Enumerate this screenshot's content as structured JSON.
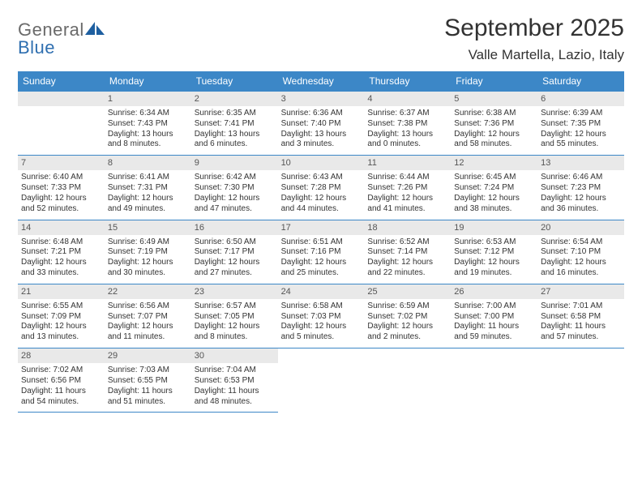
{
  "brand": {
    "part1": "General",
    "part2": "Blue"
  },
  "logo_colors": {
    "gray": "#6a6a6a",
    "blue": "#2f6fb0",
    "sail": "#1e5fa0"
  },
  "title": "September 2025",
  "location": "Valle Martella, Lazio, Italy",
  "header_bg": "#3c87c7",
  "header_fg": "#ffffff",
  "daynum_bg": "#e9e9e9",
  "daynum_fg": "#555555",
  "border_color": "#3c87c7",
  "weekdays": [
    "Sunday",
    "Monday",
    "Tuesday",
    "Wednesday",
    "Thursday",
    "Friday",
    "Saturday"
  ],
  "first_weekday_offset": 1,
  "days": [
    {
      "n": 1,
      "sunrise": "6:34 AM",
      "sunset": "7:43 PM",
      "dl": "13 hours and 8 minutes."
    },
    {
      "n": 2,
      "sunrise": "6:35 AM",
      "sunset": "7:41 PM",
      "dl": "13 hours and 6 minutes."
    },
    {
      "n": 3,
      "sunrise": "6:36 AM",
      "sunset": "7:40 PM",
      "dl": "13 hours and 3 minutes."
    },
    {
      "n": 4,
      "sunrise": "6:37 AM",
      "sunset": "7:38 PM",
      "dl": "13 hours and 0 minutes."
    },
    {
      "n": 5,
      "sunrise": "6:38 AM",
      "sunset": "7:36 PM",
      "dl": "12 hours and 58 minutes."
    },
    {
      "n": 6,
      "sunrise": "6:39 AM",
      "sunset": "7:35 PM",
      "dl": "12 hours and 55 minutes."
    },
    {
      "n": 7,
      "sunrise": "6:40 AM",
      "sunset": "7:33 PM",
      "dl": "12 hours and 52 minutes."
    },
    {
      "n": 8,
      "sunrise": "6:41 AM",
      "sunset": "7:31 PM",
      "dl": "12 hours and 49 minutes."
    },
    {
      "n": 9,
      "sunrise": "6:42 AM",
      "sunset": "7:30 PM",
      "dl": "12 hours and 47 minutes."
    },
    {
      "n": 10,
      "sunrise": "6:43 AM",
      "sunset": "7:28 PM",
      "dl": "12 hours and 44 minutes."
    },
    {
      "n": 11,
      "sunrise": "6:44 AM",
      "sunset": "7:26 PM",
      "dl": "12 hours and 41 minutes."
    },
    {
      "n": 12,
      "sunrise": "6:45 AM",
      "sunset": "7:24 PM",
      "dl": "12 hours and 38 minutes."
    },
    {
      "n": 13,
      "sunrise": "6:46 AM",
      "sunset": "7:23 PM",
      "dl": "12 hours and 36 minutes."
    },
    {
      "n": 14,
      "sunrise": "6:48 AM",
      "sunset": "7:21 PM",
      "dl": "12 hours and 33 minutes."
    },
    {
      "n": 15,
      "sunrise": "6:49 AM",
      "sunset": "7:19 PM",
      "dl": "12 hours and 30 minutes."
    },
    {
      "n": 16,
      "sunrise": "6:50 AM",
      "sunset": "7:17 PM",
      "dl": "12 hours and 27 minutes."
    },
    {
      "n": 17,
      "sunrise": "6:51 AM",
      "sunset": "7:16 PM",
      "dl": "12 hours and 25 minutes."
    },
    {
      "n": 18,
      "sunrise": "6:52 AM",
      "sunset": "7:14 PM",
      "dl": "12 hours and 22 minutes."
    },
    {
      "n": 19,
      "sunrise": "6:53 AM",
      "sunset": "7:12 PM",
      "dl": "12 hours and 19 minutes."
    },
    {
      "n": 20,
      "sunrise": "6:54 AM",
      "sunset": "7:10 PM",
      "dl": "12 hours and 16 minutes."
    },
    {
      "n": 21,
      "sunrise": "6:55 AM",
      "sunset": "7:09 PM",
      "dl": "12 hours and 13 minutes."
    },
    {
      "n": 22,
      "sunrise": "6:56 AM",
      "sunset": "7:07 PM",
      "dl": "12 hours and 11 minutes."
    },
    {
      "n": 23,
      "sunrise": "6:57 AM",
      "sunset": "7:05 PM",
      "dl": "12 hours and 8 minutes."
    },
    {
      "n": 24,
      "sunrise": "6:58 AM",
      "sunset": "7:03 PM",
      "dl": "12 hours and 5 minutes."
    },
    {
      "n": 25,
      "sunrise": "6:59 AM",
      "sunset": "7:02 PM",
      "dl": "12 hours and 2 minutes."
    },
    {
      "n": 26,
      "sunrise": "7:00 AM",
      "sunset": "7:00 PM",
      "dl": "11 hours and 59 minutes."
    },
    {
      "n": 27,
      "sunrise": "7:01 AM",
      "sunset": "6:58 PM",
      "dl": "11 hours and 57 minutes."
    },
    {
      "n": 28,
      "sunrise": "7:02 AM",
      "sunset": "6:56 PM",
      "dl": "11 hours and 54 minutes."
    },
    {
      "n": 29,
      "sunrise": "7:03 AM",
      "sunset": "6:55 PM",
      "dl": "11 hours and 51 minutes."
    },
    {
      "n": 30,
      "sunrise": "7:04 AM",
      "sunset": "6:53 PM",
      "dl": "11 hours and 48 minutes."
    }
  ],
  "labels": {
    "sunrise": "Sunrise: ",
    "sunset": "Sunset: ",
    "daylight": "Daylight: "
  }
}
